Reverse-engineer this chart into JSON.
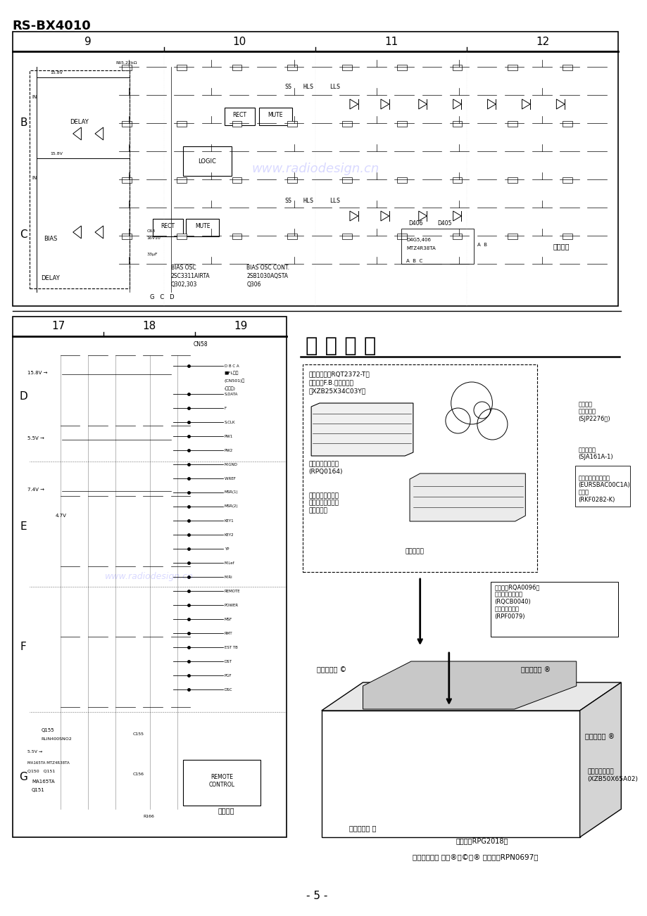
{
  "title": "RS-BX4010",
  "page_number": "- 5 -",
  "bg_color": "#ffffff",
  "top_schematic": {
    "col_labels": [
      "9",
      "10",
      "11",
      "12"
    ],
    "row_labels": [
      "B",
      "C"
    ],
    "watermark": "www.radiodesign.cn"
  },
  "bottom_left_schematic": {
    "col_labels": [
      "17",
      "18",
      "19"
    ],
    "row_labels": [
      "D",
      "E",
      "F",
      "G"
    ]
  },
  "packaging_section": {
    "title": "包 装 要 領",
    "dashed_box_items": [
      "取扱説明書（RQT2372-T）",
      "保護袋（F.B.，付属品）",
      "（XZB25X34C03Y）"
    ],
    "stereo_label": "ステレオ\nピンコード\n(SJP2276）)",
    "power_cord_label": "電源コード\n(SJA161A-1)",
    "remote_label": "ワイヤードリモコン\n(EURSBAC00C1A)\n電池蓋\n(RKF0282-K)",
    "cardboard_label": "ダンボールパット\n(RPQ0164)",
    "battery_label": "リモコン用乾電池\n（単３形乾電池）\n市販扱い。",
    "tape_label": "セロテープ",
    "guarantee_label": "保証書（RQA0096）\n消費者相談一覧表\n(RQCB0040)\n封筒（保証書）\n(RPF0079)",
    "cushion_c": "クッション ©",
    "cushion_d": "クッション ®",
    "cushion_e": "クッション ®",
    "box_label": "保護袋（本体）\n(XZB50X65A02)",
    "cushion_a": "クッション ⓐ",
    "box_number": "包装箋（RPG2018）",
    "footer_note": "〈クッション ⓐ、®、©、® の品番：RPN0697〉"
  }
}
